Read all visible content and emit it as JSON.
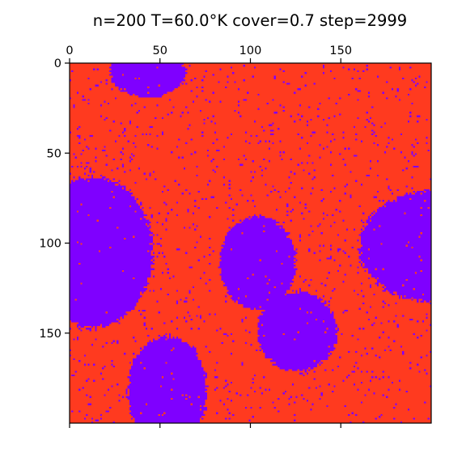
{
  "chart_data": {
    "type": "heatmap",
    "title": "n=200 T=60.0°K cover=0.7 step=2999",
    "grid_size": 200,
    "x_range": [
      0,
      200
    ],
    "y_range": [
      0,
      200
    ],
    "x_axis_position": "top",
    "y_axis_inverted": true,
    "grid": false,
    "x_ticks": [
      0,
      50,
      100,
      150
    ],
    "x_tick_labels": [
      "0",
      "50",
      "100",
      "150"
    ],
    "y_ticks": [
      0,
      50,
      100,
      150
    ],
    "y_tick_labels": [
      "0",
      "50",
      "100",
      "150"
    ],
    "colors": {
      "occupied": "#ff3a1f",
      "empty": "#7f00ff"
    },
    "empty_regions": [
      {
        "label": "top-left cluster",
        "center_x": 43,
        "center_y": 5,
        "radius_x": 21,
        "radius_y": 14
      },
      {
        "label": "left cluster",
        "center_x": 13,
        "center_y": 105,
        "radius_x": 33,
        "radius_y": 42
      },
      {
        "label": "center cluster upper",
        "center_x": 104,
        "center_y": 111,
        "radius_x": 21,
        "radius_y": 26
      },
      {
        "label": "center cluster lower",
        "center_x": 126,
        "center_y": 149,
        "radius_x": 22,
        "radius_y": 22
      },
      {
        "label": "right cluster",
        "center_x": 202,
        "center_y": 102,
        "radius_x": 42,
        "radius_y": 31
      },
      {
        "label": "bottom cluster",
        "center_x": 54,
        "center_y": 182,
        "radius_x": 22,
        "radius_y": 30
      }
    ]
  }
}
